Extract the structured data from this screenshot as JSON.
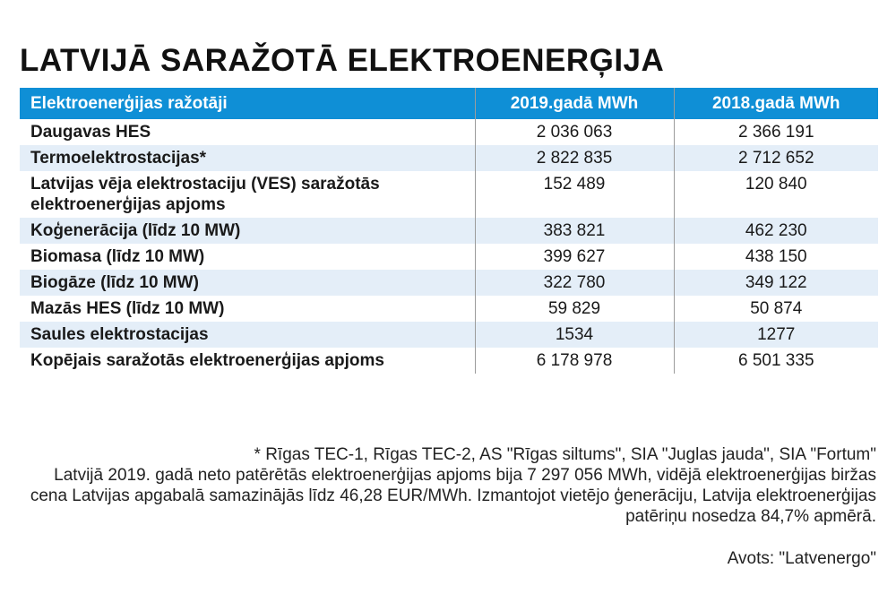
{
  "title": "LATVIJĀ SARAŽOTĀ ELEKTROENERĢIJA",
  "table": {
    "headers": [
      "Elektroenerģijas ražotāji",
      "2019.gadā MWh",
      "2018.gadā MWh"
    ],
    "rows": [
      {
        "label": "Daugavas HES",
        "v2019": "2 036 063",
        "v2018": "2 366 191"
      },
      {
        "label": "Termoelektrostacijas*",
        "v2019": "2 822 835",
        "v2018": "2 712 652"
      },
      {
        "label": "Latvijas vēja elektrostaciju (VES) saražotās elektroenerģijas apjoms",
        "v2019": "152 489",
        "v2018": "120 840"
      },
      {
        "label": "Koģenerācija (līdz 10 MW)",
        "v2019": "383 821",
        "v2018": "462 230"
      },
      {
        "label": "Biomasa (līdz 10 MW)",
        "v2019": "399 627",
        "v2018": "438 150"
      },
      {
        "label": "Biogāze (līdz 10 MW)",
        "v2019": "322 780",
        "v2018": "349 122"
      },
      {
        "label": "Mazās HES (līdz 10 MW)",
        "v2019": "59 829",
        "v2018": "50 874"
      },
      {
        "label": "Saules elektrostacijas",
        "v2019": "1534",
        "v2018": "1277"
      },
      {
        "label": "Kopējais saražotās elektroenerģijas apjoms",
        "v2019": "6 178 978",
        "v2018": "6 501 335"
      }
    ]
  },
  "footnote": {
    "asterisk": "* Rīgas TEC-1, Rīgas TEC-2, AS \"Rīgas siltums\", SIA \"Juglas jauda\", SIA \"Fortum\"",
    "text": "Latvijā 2019. gadā neto patērētās elektroenerģijas apjoms bija 7 297 056 MWh, vidējā elektroenerģijas biržas cena Latvijas apgabalā samazinājās līdz 46,28 EUR/MWh. Izmantojot vietējo ģenerāciju, Latvija elektroenerģijas patēriņu nosedza 84,7% apmērā."
  },
  "source": "Avots: \"Latvenergo\"",
  "colors": {
    "header_bg": "#0f8fd6",
    "stripe_bg": "#e4eef8"
  }
}
